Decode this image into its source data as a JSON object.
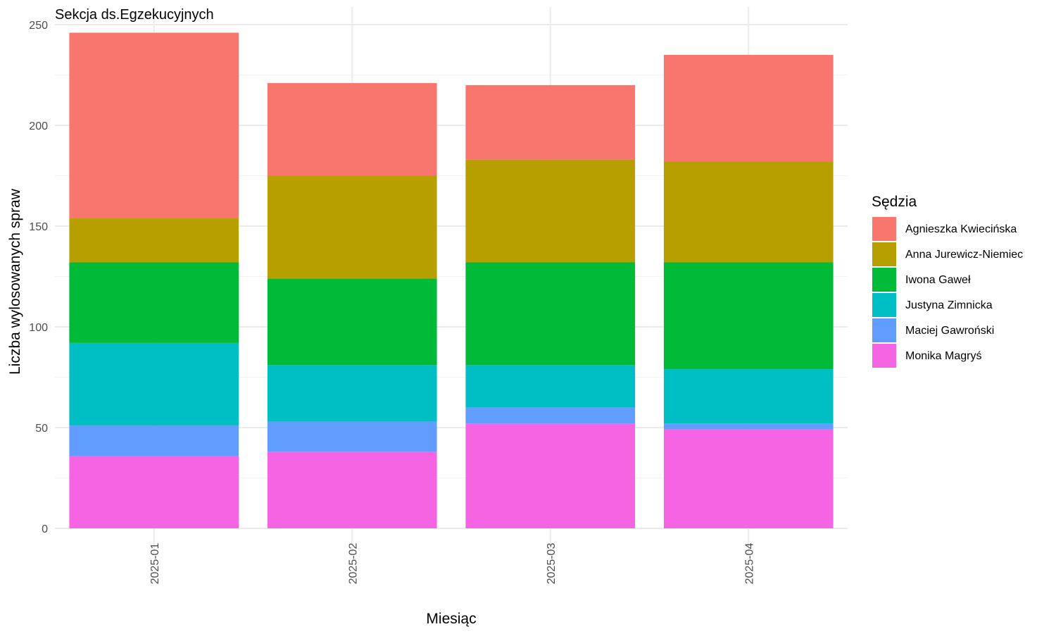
{
  "chart_data": {
    "type": "bar",
    "stacked": true,
    "title": "Sekcja ds.Egzekucyjnych",
    "xlabel": "Miesiąc",
    "ylabel": "Liczba wylosowanych spraw",
    "ylim": [
      0,
      250
    ],
    "yticks": [
      "0",
      "50",
      "100",
      "150",
      "200",
      "250"
    ],
    "categories": [
      "2025-01",
      "2025-02",
      "2025-03",
      "2025-04"
    ],
    "legend": {
      "title": "Sędzia",
      "position": "right"
    },
    "grid": true,
    "series": [
      {
        "name": "Agnieszka Kwiecińska",
        "color": "#F8766D",
        "values": [
          92,
          46,
          37,
          53
        ]
      },
      {
        "name": "Anna Jurewicz-Niemiec",
        "color": "#B79F00",
        "values": [
          22,
          51,
          51,
          50
        ]
      },
      {
        "name": "Iwona Gaweł",
        "color": "#00BA38",
        "values": [
          40,
          43,
          51,
          53
        ]
      },
      {
        "name": "Justyna Zimnicka",
        "color": "#00BFC4",
        "values": [
          41,
          28,
          21,
          27
        ]
      },
      {
        "name": "Maciej Gawroński",
        "color": "#619CFF",
        "values": [
          15,
          15,
          8,
          3
        ]
      },
      {
        "name": "Monika Magryś",
        "color": "#F564E3",
        "values": [
          36,
          38,
          52,
          49
        ]
      }
    ]
  }
}
